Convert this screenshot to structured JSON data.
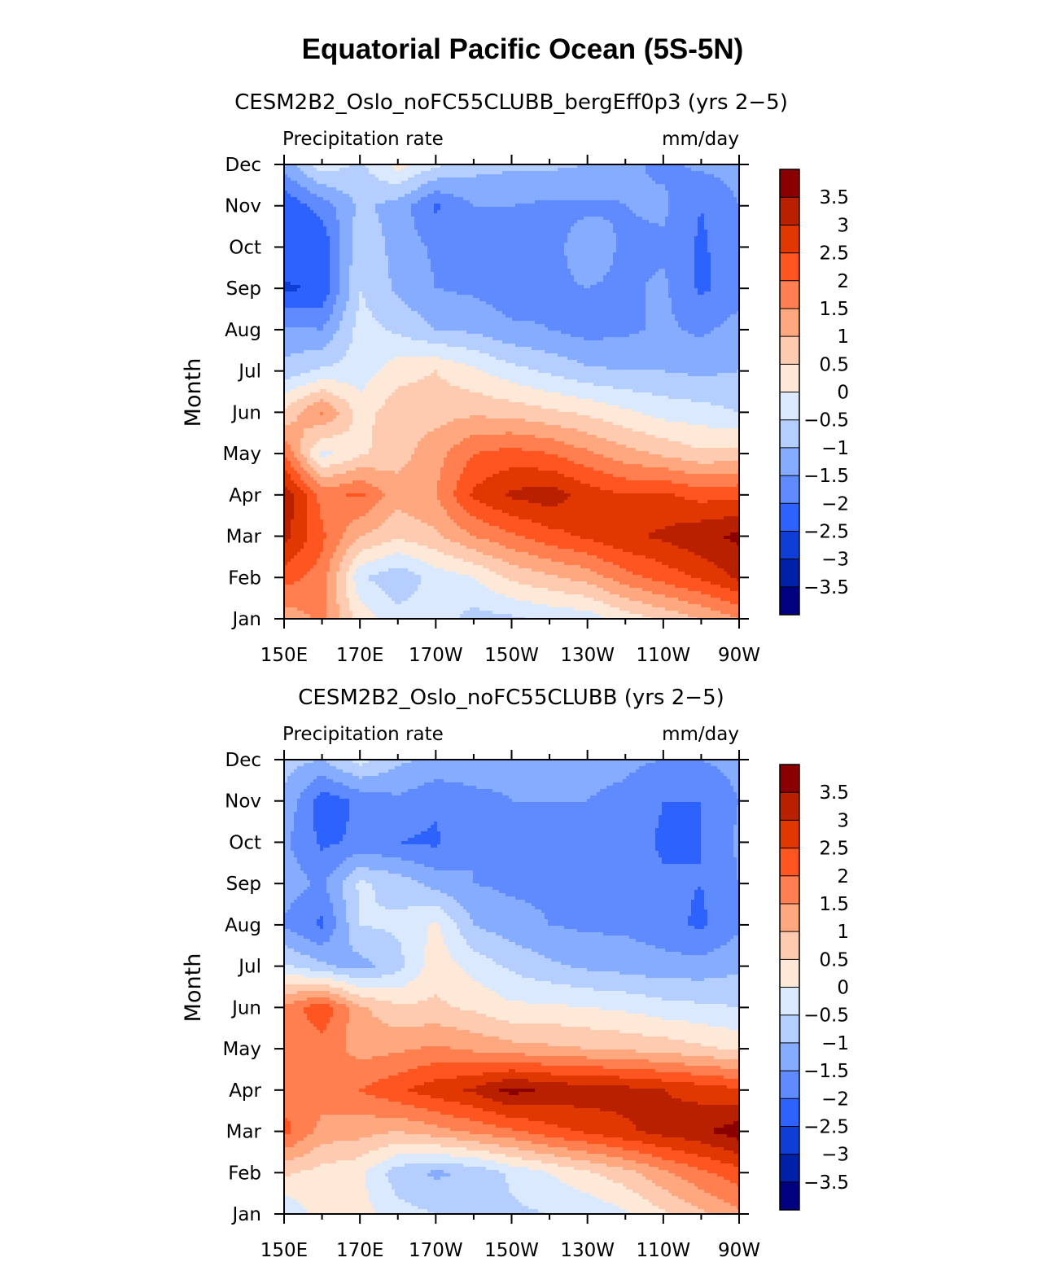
{
  "figure_title": "Equatorial Pacific Ocean (5S-5N)",
  "colorbar": {
    "labels": [
      "3.5",
      "3",
      "2.5",
      "2",
      "1.5",
      "1",
      "0.5",
      "0",
      "−0.5",
      "−1",
      "−1.5",
      "−2",
      "−2.5",
      "−3",
      "−3.5"
    ],
    "colors_top_to_bottom": [
      "#8a0000",
      "#b82000",
      "#e03800",
      "#ff5520",
      "#ff7f50",
      "#ffa880",
      "#ffcbb0",
      "#fee8d8",
      "#dbe9ff",
      "#b4cfff",
      "#86acff",
      "#5f8bff",
      "#2e62ff",
      "#0e3ed6",
      "#0020a8",
      "#000080"
    ]
  },
  "chart_data": [
    {
      "type": "heatmap",
      "title": "CESM2B2_Oslo_noFC55CLUBB_bergEff0p3 (yrs 2−5)",
      "left_label": "Precipitation rate",
      "right_label": "mm/day",
      "xlabel": "",
      "ylabel": "Month",
      "x_tick_labels": [
        "150E",
        "170E",
        "170W",
        "150W",
        "130W",
        "110W",
        "90W"
      ],
      "y_tick_labels": [
        "Jan",
        "Feb",
        "Mar",
        "Apr",
        "May",
        "Jun",
        "Jul",
        "Aug",
        "Sep",
        "Oct",
        "Nov",
        "Dec"
      ],
      "units": "mm/day",
      "contour_levels": [
        -3.5,
        -3,
        -2.5,
        -2,
        -1.5,
        -1,
        -0.5,
        0,
        0.5,
        1,
        1.5,
        2,
        2.5,
        3,
        3.5
      ],
      "x_lon": [
        150,
        160,
        170,
        180,
        190,
        200,
        210,
        220,
        230,
        240,
        250,
        260,
        270
      ],
      "z_rows_Jan_to_Dec": [
        [
          1.2,
          1.6,
          0.3,
          -0.3,
          -0.2,
          -0.7,
          -0.6,
          -0.4,
          -0.3,
          0.2,
          0.6,
          1.0,
          1.5
        ],
        [
          2.2,
          1.8,
          -0.4,
          -0.9,
          -0.3,
          0.0,
          0.6,
          0.9,
          1.2,
          1.8,
          2.2,
          2.6,
          3.1
        ],
        [
          3.2,
          2.1,
          1.0,
          0.6,
          0.9,
          1.5,
          1.9,
          2.3,
          2.6,
          2.9,
          3.1,
          3.4,
          3.6
        ],
        [
          3.4,
          1.8,
          2.1,
          1.2,
          1.5,
          2.6,
          3.1,
          3.3,
          2.8,
          2.5,
          2.6,
          2.3,
          2.4
        ],
        [
          2.0,
          -0.2,
          0.4,
          0.8,
          1.3,
          2.0,
          2.2,
          2.0,
          1.6,
          1.2,
          0.9,
          0.6,
          0.7
        ],
        [
          0.6,
          1.6,
          0.3,
          0.8,
          0.8,
          0.9,
          0.8,
          0.6,
          0.4,
          0.1,
          -0.2,
          -0.3,
          -0.5
        ],
        [
          -0.8,
          -0.4,
          -0.3,
          0.3,
          0.5,
          0.1,
          -0.3,
          -0.6,
          -0.9,
          -1.0,
          -1.0,
          -1.1,
          -1.0
        ],
        [
          -1.4,
          -1.5,
          -0.3,
          -0.6,
          -1.0,
          -1.1,
          -1.4,
          -1.5,
          -1.7,
          -1.6,
          -1.4,
          -1.6,
          -1.3
        ],
        [
          -2.6,
          -2.4,
          -0.5,
          -1.1,
          -1.5,
          -1.6,
          -1.8,
          -1.6,
          -1.5,
          -1.6,
          -1.4,
          -2.1,
          -1.7
        ],
        [
          -2.0,
          -2.4,
          -0.6,
          -1.2,
          -1.6,
          -1.7,
          -1.6,
          -1.7,
          -1.2,
          -1.6,
          -1.6,
          -2.1,
          -1.6
        ],
        [
          -2.4,
          -1.8,
          -0.9,
          -1.2,
          -2.1,
          -1.5,
          -1.5,
          -1.6,
          -1.6,
          -1.5,
          -1.4,
          -2.0,
          -1.5
        ],
        [
          -1.3,
          -0.2,
          -0.6,
          0.2,
          -0.4,
          -0.8,
          -0.9,
          -0.9,
          -1.0,
          -1.4,
          -1.6,
          -1.4,
          -1.3
        ]
      ]
    },
    {
      "type": "heatmap",
      "title": "CESM2B2_Oslo_noFC55CLUBB (yrs 2−5)",
      "left_label": "Precipitation rate",
      "right_label": "mm/day",
      "xlabel": "",
      "ylabel": "Month",
      "x_tick_labels": [
        "150E",
        "170E",
        "170W",
        "150W",
        "130W",
        "110W",
        "90W"
      ],
      "y_tick_labels": [
        "Jan",
        "Feb",
        "Mar",
        "Apr",
        "May",
        "Jun",
        "Jul",
        "Aug",
        "Sep",
        "Oct",
        "Nov",
        "Dec"
      ],
      "units": "mm/day",
      "contour_levels": [
        -3.5,
        -3,
        -2.5,
        -2,
        -1.5,
        -1,
        -0.5,
        0,
        0.5,
        1,
        1.5,
        2,
        2.5,
        3,
        3.5
      ],
      "x_lon": [
        150,
        160,
        170,
        180,
        190,
        200,
        210,
        220,
        230,
        240,
        250,
        260,
        270
      ],
      "z_rows_Jan_to_Dec": [
        [
          -0.5,
          0.3,
          0.2,
          -0.3,
          -0.5,
          -0.7,
          -0.6,
          -0.5,
          -0.4,
          -0.1,
          0.4,
          0.9,
          1.4
        ],
        [
          0.6,
          0.3,
          0.1,
          -0.8,
          -1.1,
          -0.9,
          -0.4,
          0.0,
          0.4,
          0.8,
          1.4,
          1.9,
          2.3
        ],
        [
          2.2,
          1.3,
          1.2,
          1.0,
          1.3,
          1.6,
          1.9,
          2.3,
          2.6,
          2.9,
          3.2,
          3.4,
          3.8
        ],
        [
          1.7,
          1.8,
          2.0,
          2.4,
          2.8,
          3.1,
          3.7,
          3.4,
          3.3,
          3.2,
          3.0,
          2.8,
          2.6
        ],
        [
          1.5,
          1.8,
          1.3,
          1.4,
          1.6,
          1.4,
          1.2,
          1.1,
          1.0,
          0.9,
          0.8,
          0.6,
          0.4
        ],
        [
          1.6,
          2.4,
          1.1,
          0.6,
          0.6,
          0.4,
          0.1,
          0.1,
          0.0,
          -0.1,
          -0.3,
          -0.4,
          -0.5
        ],
        [
          -0.4,
          -0.9,
          -1.2,
          -0.7,
          0.3,
          -0.2,
          -0.6,
          -0.9,
          -1.1,
          -1.2,
          -1.3,
          -1.3,
          -1.1
        ],
        [
          -1.6,
          -2.1,
          -0.5,
          -0.4,
          0.1,
          -1.0,
          -1.3,
          -1.5,
          -1.6,
          -1.6,
          -1.8,
          -2.1,
          -1.6
        ],
        [
          -1.2,
          -1.6,
          -0.4,
          -0.7,
          -1.2,
          -1.5,
          -1.6,
          -1.6,
          -1.7,
          -1.6,
          -1.9,
          -2.0,
          -1.5
        ],
        [
          -1.4,
          -2.1,
          -1.9,
          -2.0,
          -2.1,
          -1.5,
          -1.6,
          -1.6,
          -1.6,
          -1.7,
          -2.1,
          -2.0,
          -1.4
        ],
        [
          -1.1,
          -2.3,
          -1.9,
          -1.6,
          -1.9,
          -1.6,
          -1.5,
          -1.5,
          -1.5,
          -1.6,
          -2.0,
          -2.0,
          -1.5
        ],
        [
          -0.8,
          -1.0,
          -0.3,
          -0.9,
          -1.1,
          -1.3,
          -1.4,
          -1.4,
          -1.4,
          -1.4,
          -1.5,
          -1.5,
          -1.3
        ]
      ]
    }
  ]
}
